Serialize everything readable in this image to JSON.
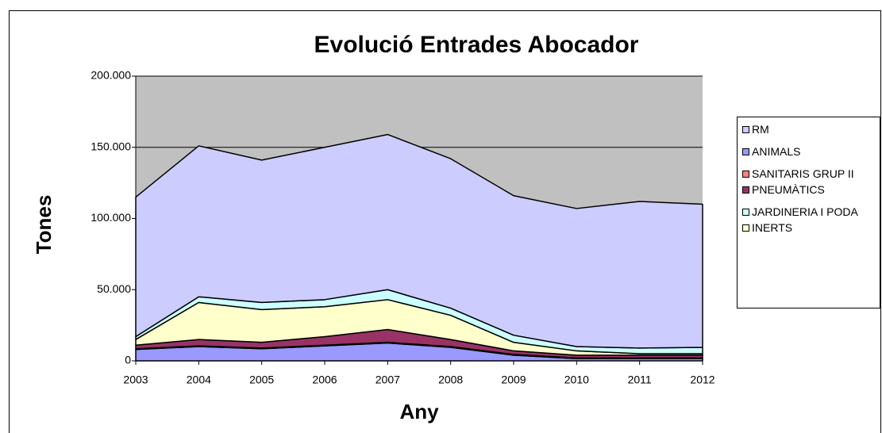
{
  "chart_data": {
    "type": "stacked_area",
    "title": "Evolució Entrades Abocador",
    "x_label": "Any",
    "y_label": "Tones",
    "categories": [
      "2003",
      "2004",
      "2005",
      "2006",
      "2007",
      "2008",
      "2009",
      "2010",
      "2011",
      "2012"
    ],
    "series": [
      {
        "name": "RM",
        "color": "#ccccff",
        "values": [
          98000,
          106000,
          100000,
          107000,
          109000,
          105000,
          98000,
          97000,
          103000,
          100500
        ]
      },
      {
        "name": "ANIMALS",
        "color": "#9999ff",
        "values": [
          8000,
          10000,
          8500,
          10500,
          12500,
          9500,
          4000,
          1500,
          1500,
          1500
        ]
      },
      {
        "name": "SANITARIS GRUP II",
        "color": "#ff8080",
        "values": [
          500,
          500,
          500,
          500,
          500,
          500,
          500,
          500,
          500,
          500
        ]
      },
      {
        "name": "PNEUMÀTICS",
        "color": "#993366",
        "values": [
          2500,
          4500,
          4000,
          6000,
          9000,
          5000,
          2500,
          2000,
          2000,
          2000
        ]
      },
      {
        "name": "JARDINERIA I PODA",
        "color": "#ccffff",
        "values": [
          2000,
          4000,
          5000,
          5000,
          7000,
          5000,
          5000,
          3000,
          4000,
          4500
        ]
      },
      {
        "name": "INERTS",
        "color": "#ffffcc",
        "values": [
          4000,
          26000,
          23000,
          21000,
          21000,
          17000,
          6000,
          3000,
          1000,
          1000
        ]
      }
    ],
    "ylim": [
      0,
      200000
    ],
    "yticks": [
      0,
      {
        "value": 50000,
        "label": "50.000"
      },
      {
        "value": 100000,
        "label": "100.000"
      },
      {
        "value": 150000,
        "label": "150.000"
      },
      {
        "value": 200000,
        "label": "200.000"
      }
    ],
    "grid": true,
    "legend": "right"
  }
}
